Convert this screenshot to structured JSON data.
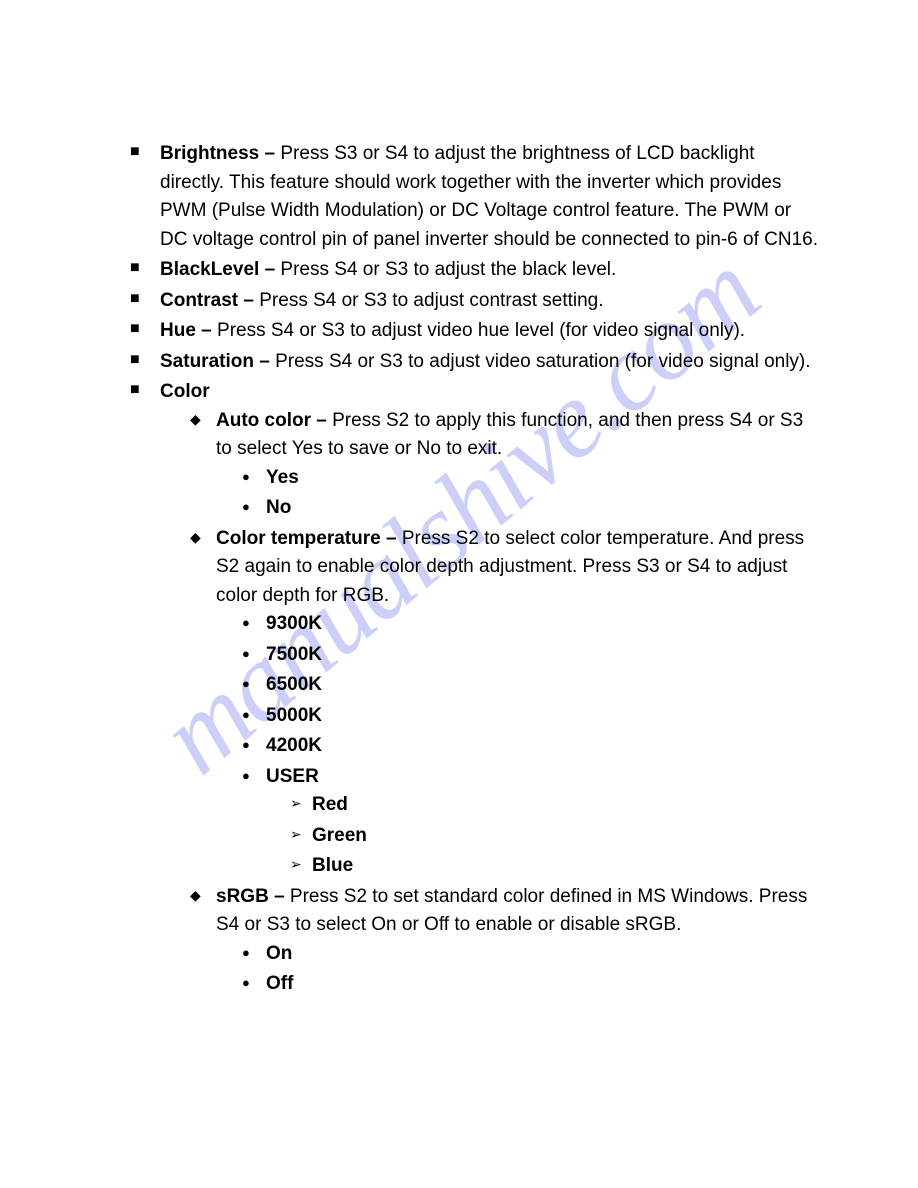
{
  "watermark": "manualshive.com",
  "items": [
    {
      "title": "Brightness –",
      "text": "Press S3 or S4 to adjust the brightness of LCD backlight directly. This feature should work together with the inverter which provides PWM (Pulse Width Modulation) or DC Voltage control feature. The PWM or DC voltage control pin of panel inverter should be connected to pin-6 of CN16."
    },
    {
      "title": "BlackLevel –",
      "text": "Press S4 or S3 to adjust the black level."
    },
    {
      "title": "Contrast –",
      "text": "Press S4 or S3 to adjust contrast setting."
    },
    {
      "title": "Hue –",
      "text": "Press S4 or S3 to adjust video hue level (for video signal only)."
    },
    {
      "title": "Saturation –",
      "text": "Press S4 or S3 to adjust video saturation (for video signal only)."
    },
    {
      "title": "Color",
      "text": "",
      "children": [
        {
          "title": "Auto color –",
          "text": "Press S2 to apply this function, and then press S4 or S3 to select Yes to save or No to exit.",
          "options_bold": [
            "Yes",
            "No"
          ]
        },
        {
          "title": "Color temperature –",
          "text": "Press S2 to select color temperature. And press S2 again to enable color depth adjustment. Press S3 or S4 to adjust color depth for RGB.",
          "options_bold": [
            "9300K",
            "7500K",
            "6500K",
            "5000K",
            "4200K",
            "USER"
          ],
          "user_sub": [
            "Red",
            "Green",
            "Blue"
          ]
        },
        {
          "title": "sRGB –",
          "text": "Press S2 to set standard color defined in MS Windows. Press S4 or S3 to select On or Off to enable or disable sRGB.",
          "options_bold": [
            "On",
            "Off"
          ]
        }
      ]
    }
  ]
}
